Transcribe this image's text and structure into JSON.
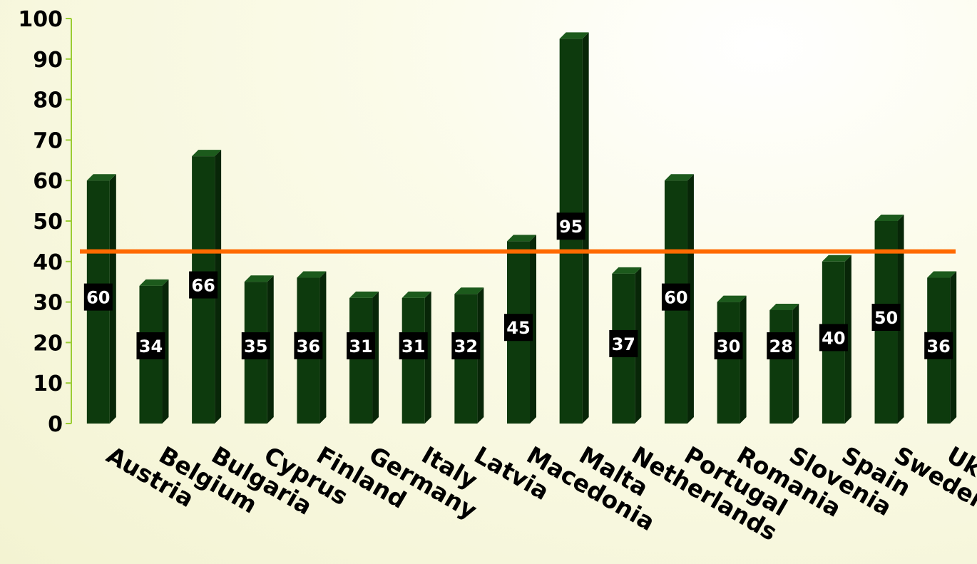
{
  "chart_data": {
    "type": "bar",
    "categories": [
      "Austria",
      "Belgium",
      "Bulgaria",
      "Cyprus",
      "Finland",
      "Germany",
      "Italy",
      "Latvia",
      "Macedonia",
      "Malta",
      "Netherlands",
      "Portugal",
      "Romania",
      "Slovenia",
      "Spain",
      "Sweden",
      "Uk"
    ],
    "values": [
      60,
      34,
      66,
      35,
      36,
      31,
      31,
      32,
      45,
      95,
      37,
      60,
      30,
      28,
      40,
      50,
      36
    ],
    "yticks": [
      0,
      10,
      20,
      30,
      40,
      50,
      60,
      70,
      80,
      90,
      100
    ],
    "ylim": [
      0,
      100
    ],
    "reference_line": 42.5,
    "grid": false,
    "colors": {
      "bar_front": "#0d3a0d",
      "bar_side": "#082608",
      "bar_top": "#1c5a1c",
      "reference_line": "#ff6a00",
      "axis": "#9acd32",
      "label_box": "#000000",
      "label_text": "#ffffff"
    }
  }
}
